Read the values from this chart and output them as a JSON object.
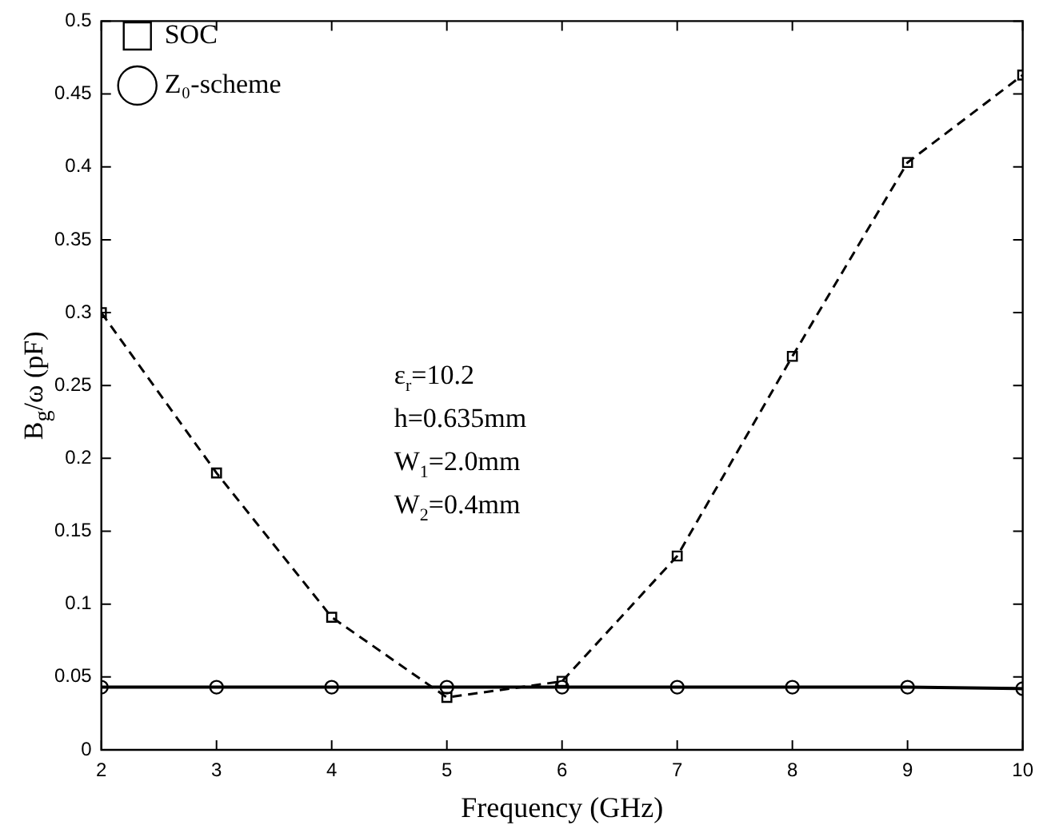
{
  "chart_data": {
    "type": "line",
    "xlabel": "Frequency (GHz)",
    "ylabel": "B$_{g}$/ω (pF)",
    "x": [
      2,
      3,
      4,
      5,
      6,
      7,
      8,
      9,
      10
    ],
    "series": [
      {
        "name": "SOC",
        "color": "#000000",
        "marker": "square",
        "line_style": "dashed",
        "values": [
          0.3,
          0.19,
          0.091,
          0.036,
          0.047,
          0.133,
          0.27,
          0.403,
          0.463
        ]
      },
      {
        "name": "Z₀-scheme",
        "color": "#000000",
        "marker": "circle",
        "line_style": "solid",
        "values": [
          0.043,
          0.043,
          0.043,
          0.043,
          0.043,
          0.043,
          0.043,
          0.043,
          0.042
        ]
      }
    ],
    "xlim": [
      2,
      10
    ],
    "xticks": [
      2,
      3,
      4,
      5,
      6,
      7,
      8,
      9,
      10
    ],
    "ylim": [
      0,
      0.5
    ],
    "yticks": [
      0,
      0.05,
      0.1,
      0.15,
      0.2,
      0.25,
      0.3,
      0.35,
      0.4,
      0.45,
      0.5
    ],
    "grid": false,
    "legend": "top left",
    "annotations": [
      "ε$_{r}$=10.2",
      "h=0.635mm",
      "W$_{1}$=2.0mm",
      "W$_{2}$=0.4mm"
    ]
  }
}
